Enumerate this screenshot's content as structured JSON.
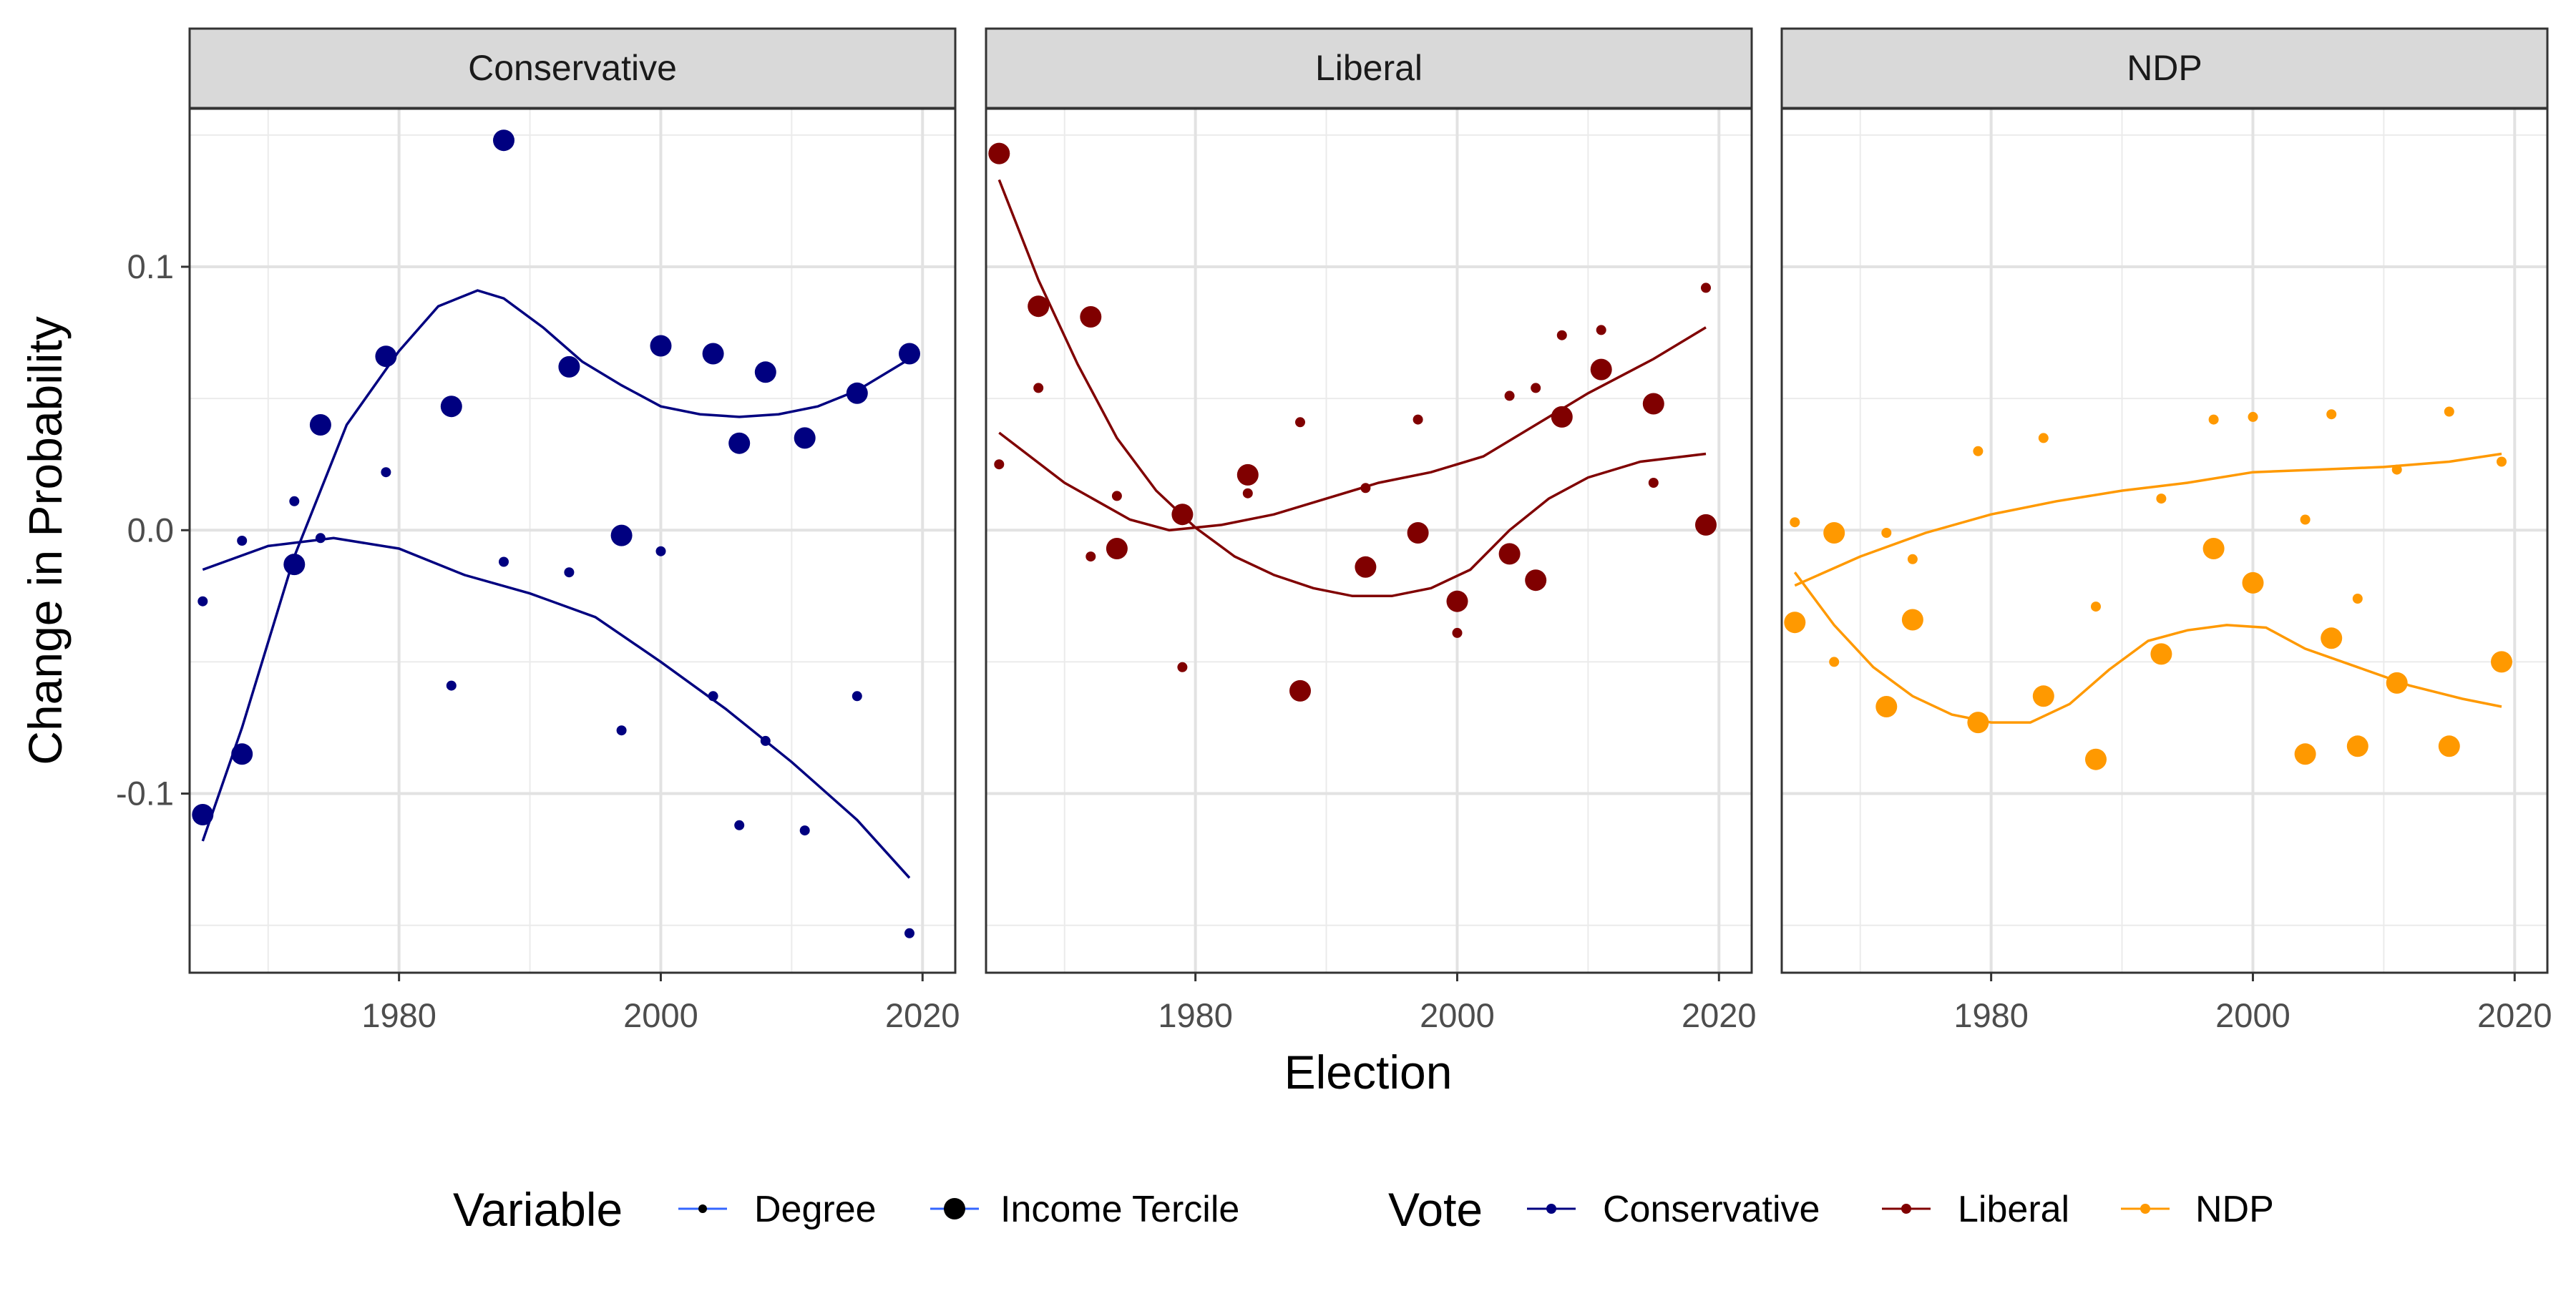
{
  "chart_data": {
    "type": "scatter",
    "facet_variable": "Vote",
    "xlabel": "Election",
    "ylabel": "Change in Probability",
    "xlim": [
      1964,
      2022.5
    ],
    "ylim": [
      -0.168,
      0.16
    ],
    "x_ticks": [
      1980,
      2000,
      2020
    ],
    "x_tick_labels": [
      "1980",
      "2000",
      "2020"
    ],
    "y_ticks": [
      -0.1,
      0.0,
      0.1
    ],
    "y_tick_labels": [
      "-0.1",
      "0.0",
      "0.1"
    ],
    "grid": true,
    "legend_position": "bottom",
    "legend": {
      "variable_title": "Variable",
      "variable_items": [
        "Degree",
        "Income Tercile"
      ],
      "vote_title": "Vote",
      "vote_items": [
        "Conservative",
        "Liberal",
        "NDP"
      ]
    },
    "panels": [
      {
        "name": "Conservative",
        "color": "#000080",
        "series": [
          {
            "name": "Degree",
            "points": [
              [
                1965,
                -0.027
              ],
              [
                1968,
                -0.004
              ],
              [
                1972,
                0.011
              ],
              [
                1974,
                -0.003
              ],
              [
                1979,
                0.022
              ],
              [
                1984,
                -0.059
              ],
              [
                1988,
                -0.012
              ],
              [
                1993,
                -0.016
              ],
              [
                1997,
                -0.076
              ],
              [
                2000,
                -0.008
              ],
              [
                2004,
                -0.063
              ],
              [
                2006,
                -0.112
              ],
              [
                2008,
                -0.08
              ],
              [
                2011,
                -0.114
              ],
              [
                2015,
                -0.063
              ],
              [
                2019,
                -0.153
              ]
            ],
            "trend": [
              [
                1965,
                -0.015
              ],
              [
                1970,
                -0.006
              ],
              [
                1975,
                -0.003
              ],
              [
                1980,
                -0.007
              ],
              [
                1985,
                -0.017
              ],
              [
                1990,
                -0.024
              ],
              [
                1995,
                -0.033
              ],
              [
                2000,
                -0.05
              ],
              [
                2005,
                -0.068
              ],
              [
                2010,
                -0.088
              ],
              [
                2015,
                -0.11
              ],
              [
                2019,
                -0.132
              ]
            ]
          },
          {
            "name": "Income Tercile",
            "points": [
              [
                1965,
                -0.108
              ],
              [
                1968,
                -0.085
              ],
              [
                1972,
                -0.013
              ],
              [
                1974,
                0.04
              ],
              [
                1979,
                0.066
              ],
              [
                1984,
                0.047
              ],
              [
                1988,
                0.148
              ],
              [
                1993,
                0.062
              ],
              [
                1997,
                -0.002
              ],
              [
                2000,
                0.07
              ],
              [
                2004,
                0.067
              ],
              [
                2006,
                0.033
              ],
              [
                2008,
                0.06
              ],
              [
                2011,
                0.035
              ],
              [
                2015,
                0.052
              ],
              [
                2019,
                0.067
              ]
            ],
            "trend": [
              [
                1965,
                -0.118
              ],
              [
                1968,
                -0.075
              ],
              [
                1972,
                -0.01
              ],
              [
                1976,
                0.04
              ],
              [
                1980,
                0.068
              ],
              [
                1983,
                0.085
              ],
              [
                1986,
                0.091
              ],
              [
                1988,
                0.088
              ],
              [
                1991,
                0.077
              ],
              [
                1994,
                0.064
              ],
              [
                1997,
                0.055
              ],
              [
                2000,
                0.047
              ],
              [
                2003,
                0.044
              ],
              [
                2006,
                0.043
              ],
              [
                2009,
                0.044
              ],
              [
                2012,
                0.047
              ],
              [
                2015,
                0.053
              ],
              [
                2019,
                0.065
              ]
            ]
          }
        ]
      },
      {
        "name": "Liberal",
        "color": "#800000",
        "series": [
          {
            "name": "Degree",
            "points": [
              [
                1965,
                0.025
              ],
              [
                1968,
                0.054
              ],
              [
                1972,
                -0.01
              ],
              [
                1974,
                0.013
              ],
              [
                1979,
                -0.052
              ],
              [
                1984,
                0.014
              ],
              [
                1988,
                0.041
              ],
              [
                1993,
                0.016
              ],
              [
                1997,
                0.042
              ],
              [
                2000,
                -0.039
              ],
              [
                2004,
                0.051
              ],
              [
                2006,
                0.054
              ],
              [
                2008,
                0.074
              ],
              [
                2011,
                0.076
              ],
              [
                2015,
                0.018
              ],
              [
                2019,
                0.092
              ]
            ],
            "trend": [
              [
                1965,
                0.037
              ],
              [
                1970,
                0.018
              ],
              [
                1975,
                0.004
              ],
              [
                1978,
                0.0
              ],
              [
                1982,
                0.002
              ],
              [
                1986,
                0.006
              ],
              [
                1990,
                0.012
              ],
              [
                1994,
                0.018
              ],
              [
                1998,
                0.022
              ],
              [
                2002,
                0.028
              ],
              [
                2006,
                0.04
              ],
              [
                2010,
                0.052
              ],
              [
                2015,
                0.065
              ],
              [
                2019,
                0.077
              ]
            ]
          },
          {
            "name": "Income Tercile",
            "points": [
              [
                1965,
                0.143
              ],
              [
                1968,
                0.085
              ],
              [
                1972,
                0.081
              ],
              [
                1974,
                -0.007
              ],
              [
                1979,
                0.006
              ],
              [
                1984,
                0.021
              ],
              [
                1988,
                -0.061
              ],
              [
                1993,
                -0.014
              ],
              [
                1997,
                -0.001
              ],
              [
                2000,
                -0.027
              ],
              [
                2004,
                -0.009
              ],
              [
                2006,
                -0.019
              ],
              [
                2008,
                0.043
              ],
              [
                2011,
                0.061
              ],
              [
                2015,
                0.048
              ],
              [
                2019,
                0.002
              ]
            ],
            "trend": [
              [
                1965,
                0.133
              ],
              [
                1968,
                0.095
              ],
              [
                1971,
                0.063
              ],
              [
                1974,
                0.035
              ],
              [
                1977,
                0.015
              ],
              [
                1980,
                0.001
              ],
              [
                1983,
                -0.01
              ],
              [
                1986,
                -0.017
              ],
              [
                1989,
                -0.022
              ],
              [
                1992,
                -0.025
              ],
              [
                1995,
                -0.025
              ],
              [
                1998,
                -0.022
              ],
              [
                2001,
                -0.015
              ],
              [
                2004,
                0.0
              ],
              [
                2007,
                0.012
              ],
              [
                2010,
                0.02
              ],
              [
                2014,
                0.026
              ],
              [
                2019,
                0.029
              ]
            ]
          }
        ]
      },
      {
        "name": "NDP",
        "color": "#FF9900",
        "series": [
          {
            "name": "Degree",
            "points": [
              [
                1965,
                0.003
              ],
              [
                1968,
                -0.05
              ],
              [
                1972,
                -0.001
              ],
              [
                1974,
                -0.011
              ],
              [
                1979,
                0.03
              ],
              [
                1984,
                0.035
              ],
              [
                1988,
                -0.029
              ],
              [
                1993,
                0.012
              ],
              [
                1997,
                0.042
              ],
              [
                2000,
                0.043
              ],
              [
                2004,
                0.004
              ],
              [
                2006,
                0.044
              ],
              [
                2008,
                -0.026
              ],
              [
                2011,
                0.023
              ],
              [
                2015,
                0.045
              ],
              [
                2019,
                0.026
              ]
            ],
            "trend": [
              [
                1965,
                -0.021
              ],
              [
                1970,
                -0.01
              ],
              [
                1975,
                -0.001
              ],
              [
                1980,
                0.006
              ],
              [
                1985,
                0.011
              ],
              [
                1990,
                0.015
              ],
              [
                1995,
                0.018
              ],
              [
                2000,
                0.022
              ],
              [
                2005,
                0.023
              ],
              [
                2010,
                0.024
              ],
              [
                2015,
                0.026
              ],
              [
                2019,
                0.029
              ]
            ]
          },
          {
            "name": "Income Tercile",
            "points": [
              [
                1965,
                -0.035
              ],
              [
                1968,
                -0.001
              ],
              [
                1972,
                -0.067
              ],
              [
                1974,
                -0.034
              ],
              [
                1979,
                -0.073
              ],
              [
                1984,
                -0.063
              ],
              [
                1988,
                -0.087
              ],
              [
                1993,
                -0.047
              ],
              [
                1997,
                -0.007
              ],
              [
                2000,
                -0.02
              ],
              [
                2004,
                -0.085
              ],
              [
                2006,
                -0.041
              ],
              [
                2008,
                -0.082
              ],
              [
                2011,
                -0.058
              ],
              [
                2015,
                -0.082
              ],
              [
                2019,
                -0.05
              ]
            ],
            "trend": [
              [
                1965,
                -0.016
              ],
              [
                1968,
                -0.036
              ],
              [
                1971,
                -0.052
              ],
              [
                1974,
                -0.063
              ],
              [
                1977,
                -0.07
              ],
              [
                1980,
                -0.073
              ],
              [
                1983,
                -0.073
              ],
              [
                1986,
                -0.066
              ],
              [
                1989,
                -0.053
              ],
              [
                1992,
                -0.042
              ],
              [
                1995,
                -0.038
              ],
              [
                1998,
                -0.036
              ],
              [
                2001,
                -0.037
              ],
              [
                2004,
                -0.045
              ],
              [
                2008,
                -0.052
              ],
              [
                2012,
                -0.059
              ],
              [
                2016,
                -0.064
              ],
              [
                2019,
                -0.067
              ]
            ]
          }
        ]
      }
    ]
  }
}
